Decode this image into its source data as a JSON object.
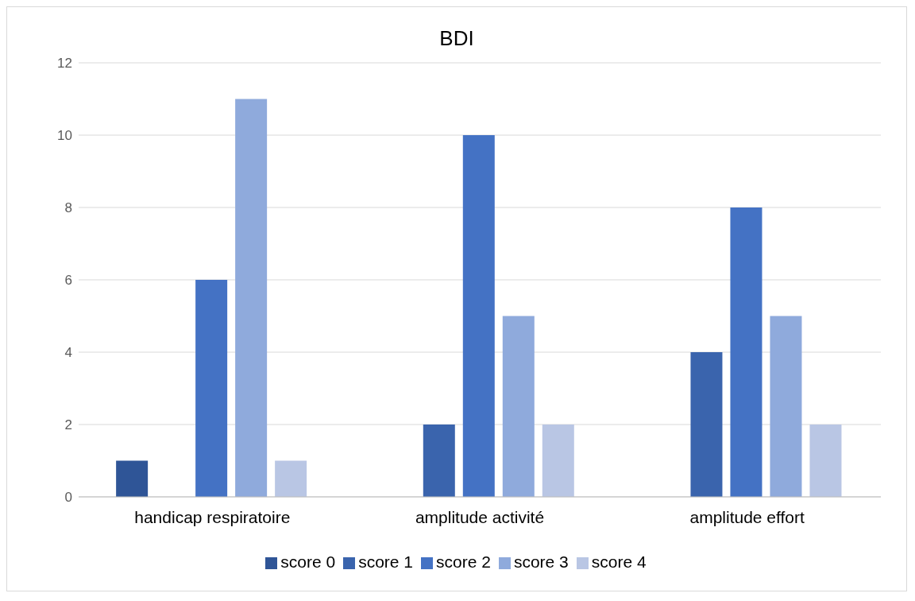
{
  "chart_data": {
    "type": "bar",
    "title": "BDI",
    "categories": [
      "handicap respiratoire",
      "amplitude activité",
      "amplitude effort"
    ],
    "series": [
      {
        "name": "score 0",
        "color": "#2f5597",
        "values": [
          1,
          0,
          0
        ]
      },
      {
        "name": "score 1",
        "color": "#3a64ad",
        "values": [
          0,
          2,
          4
        ]
      },
      {
        "name": "score 2",
        "color": "#4472c4",
        "values": [
          6,
          10,
          8
        ]
      },
      {
        "name": "score 3",
        "color": "#8faadc",
        "values": [
          11,
          5,
          5
        ]
      },
      {
        "name": "score 4",
        "color": "#b9c6e4",
        "values": [
          1,
          2,
          2
        ]
      }
    ],
    "ylim": [
      0,
      12
    ],
    "yticks": [
      0,
      2,
      4,
      6,
      8,
      10,
      12
    ],
    "grid": "y",
    "legend": "bottom"
  }
}
